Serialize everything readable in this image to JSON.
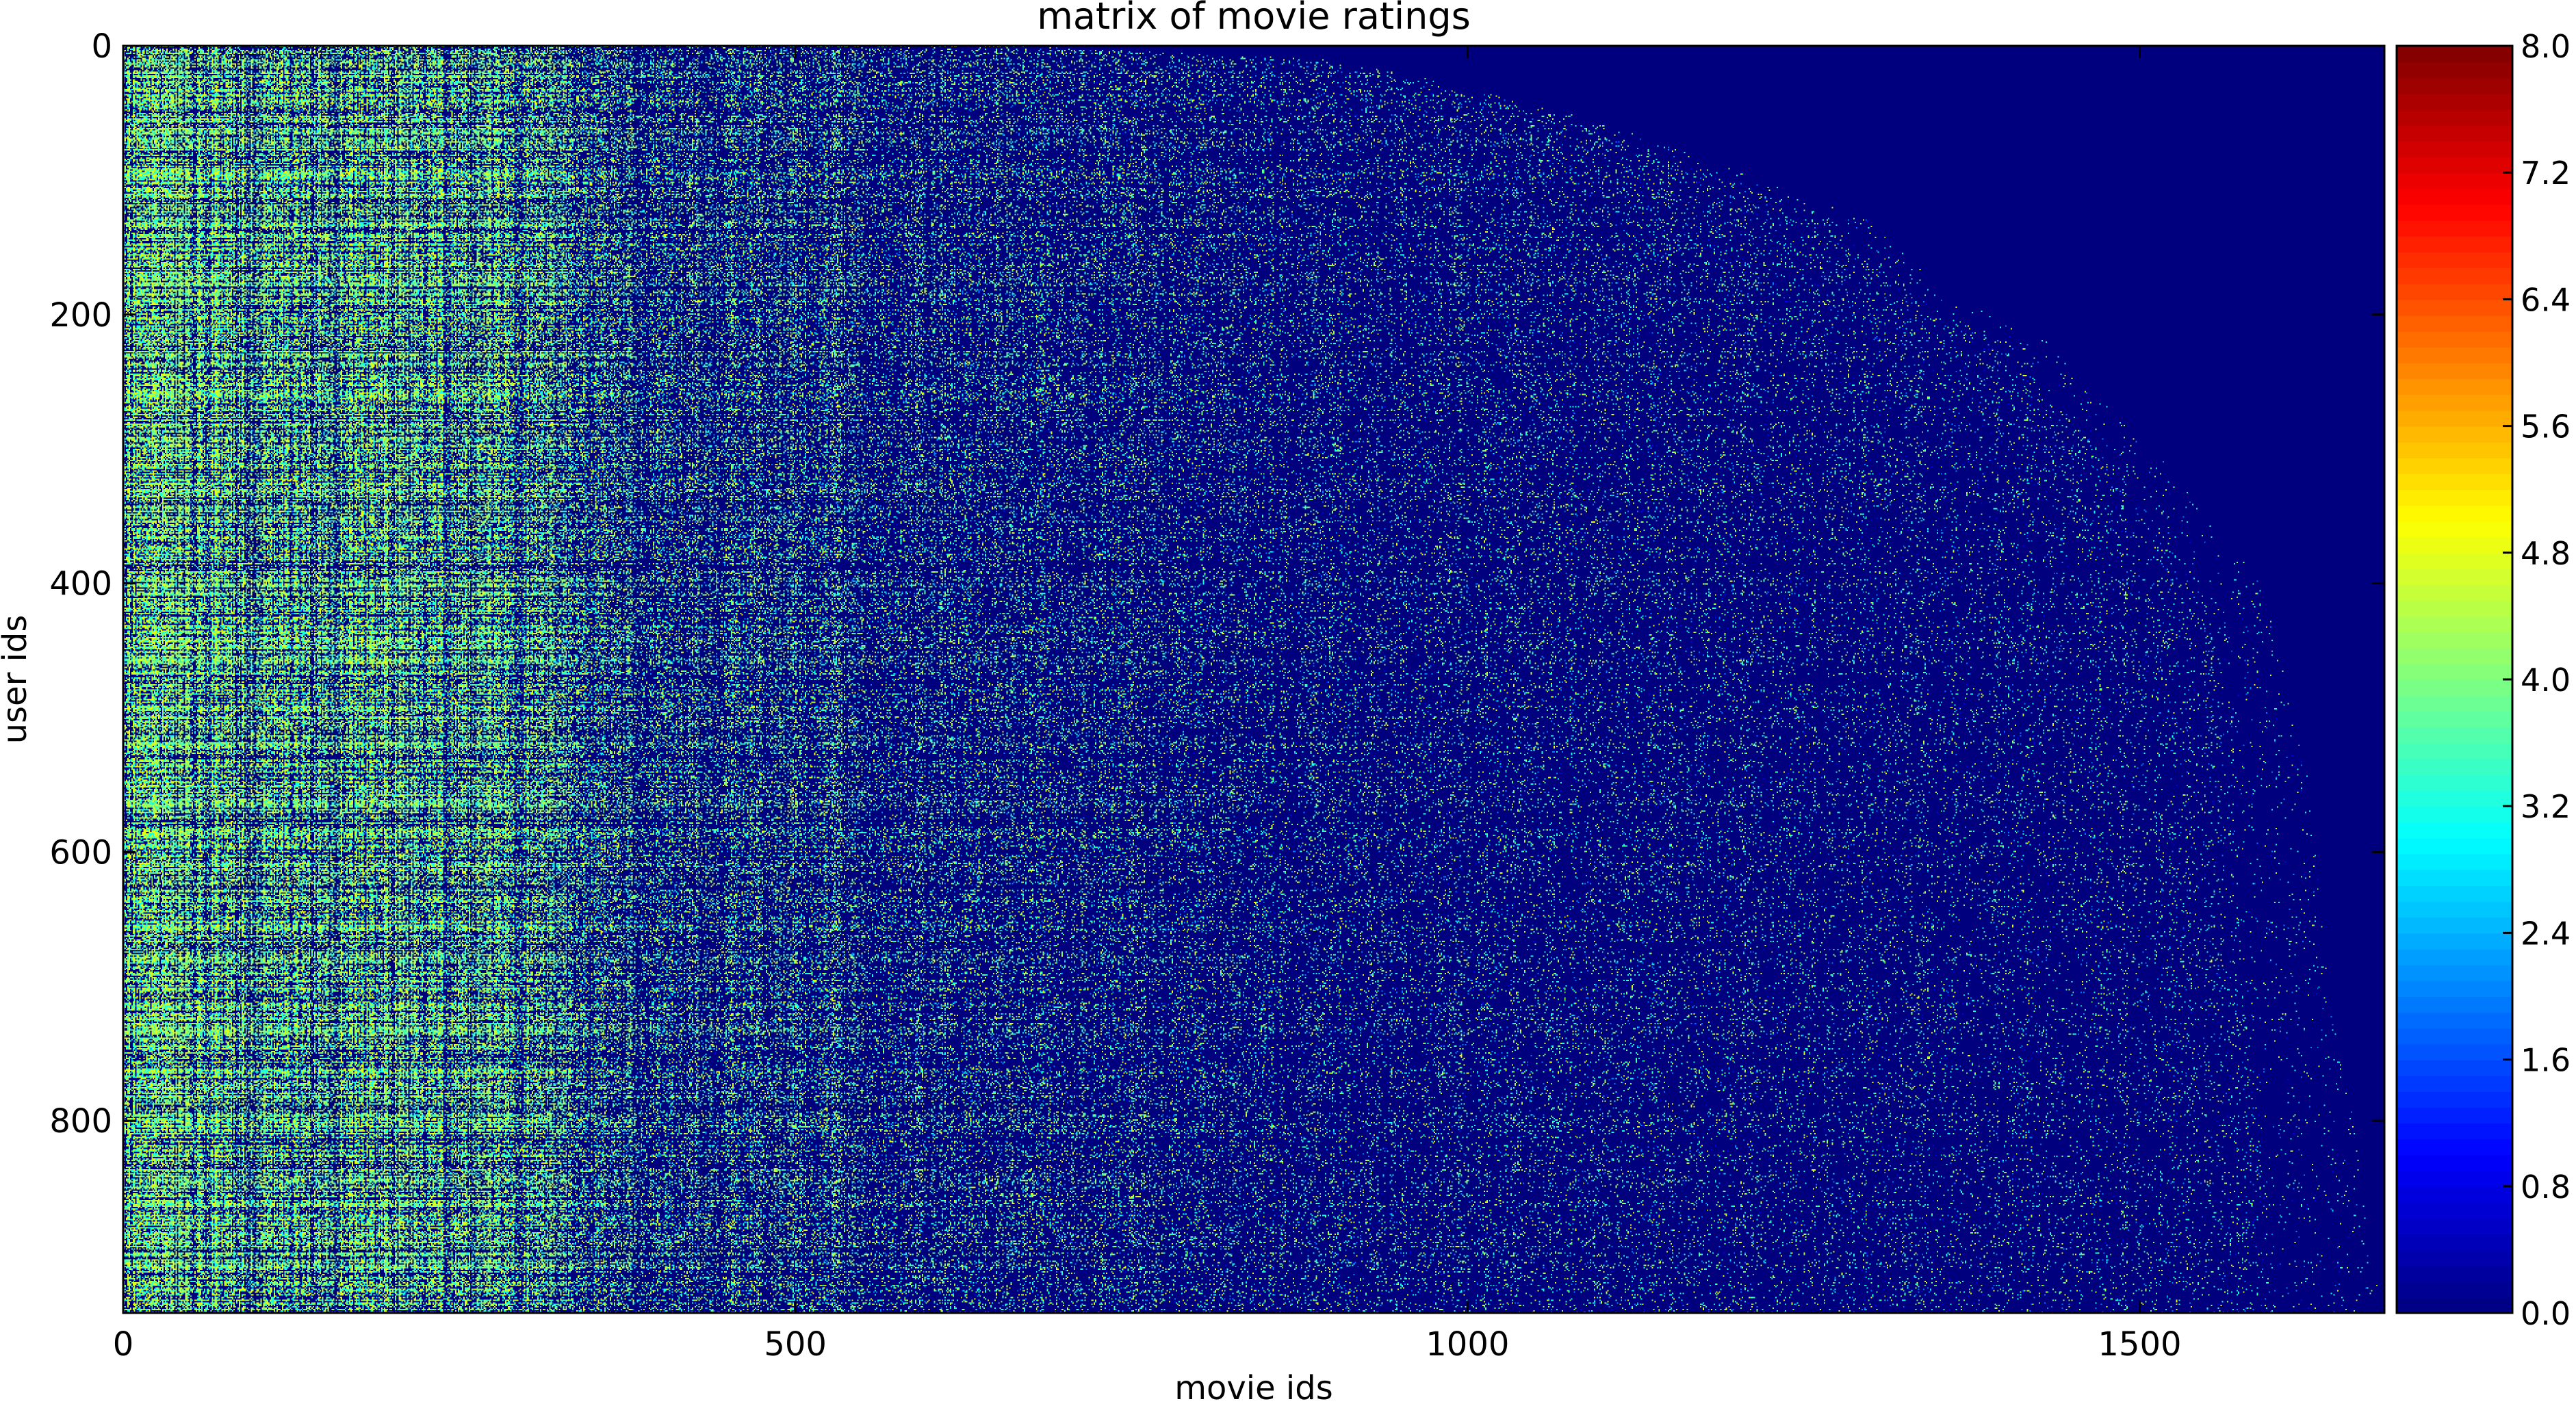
{
  "chart_data": {
    "type": "heatmap",
    "title": "matrix of movie ratings",
    "xlabel": "movie ids",
    "ylabel": "user ids",
    "xlim": [
      0,
      1682
    ],
    "ylim": [
      943,
      0
    ],
    "x_ticks": [
      {
        "value": 0,
        "label": "0"
      },
      {
        "value": 500,
        "label": "500"
      },
      {
        "value": 1000,
        "label": "1000"
      },
      {
        "value": 1500,
        "label": "1500"
      }
    ],
    "y_ticks": [
      {
        "value": 0,
        "label": "0"
      },
      {
        "value": 200,
        "label": "200"
      },
      {
        "value": 400,
        "label": "400"
      },
      {
        "value": 600,
        "label": "600"
      },
      {
        "value": 800,
        "label": "800"
      }
    ],
    "colorbar": {
      "colormap": "jet",
      "range": [
        0,
        8
      ],
      "ticks": [
        {
          "value": 0.0,
          "label": "0.0"
        },
        {
          "value": 0.8,
          "label": "0.8"
        },
        {
          "value": 1.6,
          "label": "1.6"
        },
        {
          "value": 2.4,
          "label": "2.4"
        },
        {
          "value": 3.2,
          "label": "3.2"
        },
        {
          "value": 4.0,
          "label": "4.0"
        },
        {
          "value": 4.8,
          "label": "4.8"
        },
        {
          "value": 5.6,
          "label": "5.6"
        },
        {
          "value": 6.4,
          "label": "6.4"
        },
        {
          "value": 7.2,
          "label": "7.2"
        },
        {
          "value": 8.0,
          "label": "8.0"
        }
      ]
    },
    "rating_colors": {
      "0": "#00007f",
      "1": "#0000ff",
      "2": "#0080ff",
      "3": "#15ffe2",
      "4": "#7cff79",
      "5": "#e4ff13"
    },
    "rated_movie_extent": [
      [
        0,
        680
      ],
      [
        10,
        900
      ],
      [
        30,
        1000
      ],
      [
        60,
        1110
      ],
      [
        100,
        1220
      ],
      [
        130,
        1300
      ],
      [
        180,
        1350
      ],
      [
        220,
        1430
      ],
      [
        300,
        1510
      ],
      [
        400,
        1590
      ],
      [
        500,
        1620
      ],
      [
        600,
        1630
      ],
      [
        700,
        1640
      ],
      [
        800,
        1660
      ],
      [
        900,
        1670
      ],
      [
        943,
        1682
      ]
    ]
  }
}
